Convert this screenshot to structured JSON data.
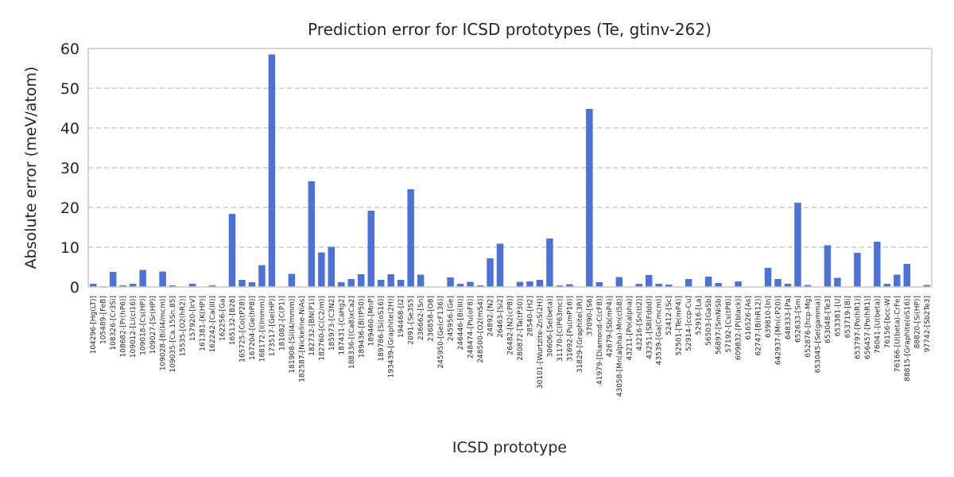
{
  "colors": {
    "bar": "#4c72d8",
    "grid": "#cccccc",
    "text": "#262626"
  },
  "chart_data": {
    "type": "bar",
    "title": "Prediction error for ICSD prototypes (Te, gtinv-262)",
    "xlabel": "ICSD prototype",
    "ylabel": "Absolute error (meV/atom)",
    "ylim": [
      0,
      60
    ],
    "yticks": [
      0,
      10,
      20,
      30,
      40,
      50,
      60
    ],
    "grid": "y-dashed",
    "categories": [
      "104296-[Hg(LT)]",
      "105489-[FeB]",
      "108326-[Cr3Si]",
      "108682-[Pr(hP6)]",
      "109012-[Li(cI16)]",
      "109018-[Cs(HP)]",
      "109027-[Sr(HP)]",
      "109028-[Bi(I4/mcm)]",
      "109035-[Ca.15Sn.85]",
      "15535-[O2(hR2)]",
      "157920-[IrV]",
      "161381-[K(HP)]",
      "162242-[Ca(III)]",
      "162256-[Ga]",
      "165132-[B28]",
      "165725-[Co(tP28)]",
      "167204-[Ge(hP8)]",
      "168172-[I(Immm)]",
      "173517-[Ge(HP)]",
      "181082-[C(P1)]",
      "181908-[Si(I4/mmm)]",
      "182587-[Nickeline-NiAs]",
      "182732-[BN(P1)]",
      "182760-[C(C2/m)]",
      "185973-[C3N2]",
      "187431-[CaHg2]",
      "188336-[(Ca8)xCa2]",
      "189436-[B(tP50)]",
      "189460-[MnP]",
      "189786-[Si(oS16)]",
      "193439-[Graphite(2H)]",
      "194468-[I2]",
      "2091-[Se3S5]",
      "236662-[Sn]",
      "236858-[O8]",
      "245950-[Ge(cF136)]",
      "245956-[Ge]",
      "246446-[Bi(III)]",
      "248474-[Pu(oF8)]",
      "248500-[O2(mS4)]",
      "24892-[N2]",
      "26463-[Si2]",
      "26482-[N2(cP8)]",
      "280872-[Ta(tP30)]",
      "28540-[H2]",
      "30101-[Wurtzite-ZnS(2H)]",
      "30606-[Se(beta)]",
      "31170-[C(P63mc)]",
      "31692-[Pu(mP16)]",
      "31829-[Graphite(3R)]",
      "37090-[S6]",
      "41979-[Diamond-C(cF8)]",
      "42679-[Sb(mP4)]",
      "43058-[Mn(alpha)-Mn(cI58)]",
      "43211-[Po(alpha)]",
      "43216-[Sn(tI2)]",
      "43251-[S8(Fddd)]",
      "43539-[Ga(Cmcm)]",
      "52412-[Sc]",
      "52501-[Te(mP4)]",
      "52914-[ccp-Cu]",
      "52916-[La]",
      "56503-[GaSb]",
      "56897-[SmNiSb]",
      "57192-[Cs(tP8)]",
      "609832-[P(black)]",
      "616526-[As]",
      "62747-[B(hR12)]",
      "639810-[In]",
      "642937-[Mn(cP20)]",
      "648333-[Pa]",
      "652633-[Sm]",
      "652876-[hcp-Mg]",
      "653045-[Se(gamma)]",
      "653048-[Te3]",
      "653381-[U]",
      "653719-[Bi]",
      "653797-[Po(hR1)]",
      "656457-[Po(hR1)]",
      "76041-[U(beta)]",
      "76156-[bcc-W]",
      "76166-[U(beta)-CrFe]",
      "88815-[Graphite(oS16)]",
      "88820-[Si(HP)]",
      "97742-[Sb2Te3]"
    ],
    "values": [
      0.8,
      0.2,
      3.8,
      0.4,
      0.8,
      4.3,
      0.1,
      3.9,
      0.4,
      0.1,
      0.8,
      0.1,
      0.4,
      0.1,
      18.4,
      1.8,
      1.2,
      5.5,
      58.5,
      0.1,
      3.3,
      0.1,
      26.6,
      8.7,
      10.1,
      1.2,
      2.0,
      3.2,
      19.2,
      1.8,
      3.2,
      1.8,
      24.6,
      3.1,
      0.1,
      0.1,
      2.4,
      0.8,
      1.3,
      0.4,
      7.2,
      10.9,
      0.1,
      1.3,
      1.4,
      1.8,
      12.2,
      0.4,
      0.7,
      0.1,
      44.8,
      1.2,
      0.1,
      2.5,
      0.1,
      0.8,
      3.0,
      0.8,
      0.6,
      0.1,
      2.0,
      0.1,
      2.6,
      1.0,
      0.1,
      1.4,
      0.1,
      0.1,
      4.8,
      2.0,
      0.8,
      21.2,
      0.5,
      0.1,
      10.5,
      2.3,
      0.1,
      8.6,
      0.1,
      11.4,
      0.8,
      3.1,
      5.8,
      0.1,
      0.5
    ]
  }
}
